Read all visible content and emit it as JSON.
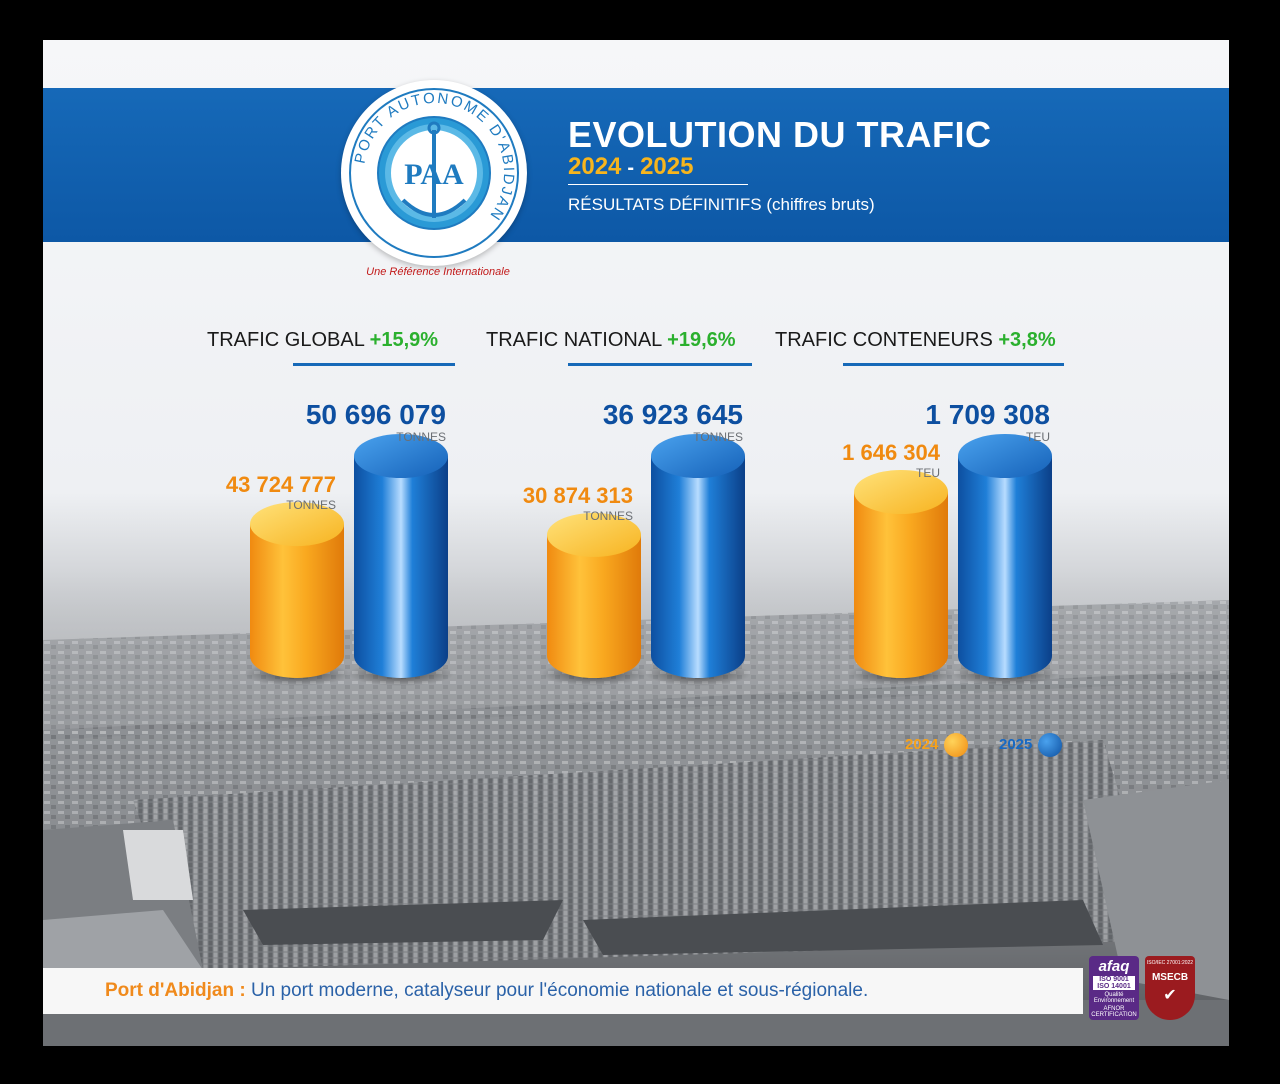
{
  "header": {
    "logo_ring_text": "PORT AUTONOME D'ABIDJAN",
    "logo_monogram": "PAA",
    "tagline": "Une Référence Internationale",
    "title": "EVOLUTION DU TRAFIC",
    "year_start": "2024",
    "year_sep": "-",
    "year_end": "2025",
    "subtitle": "RÉSULTATS DÉFINITIFS (chiffres bruts)"
  },
  "panels": [
    {
      "label": "TRAFIC GLOBAL",
      "pct": "+15,9%"
    },
    {
      "label": "TRAFIC NATIONAL",
      "pct": "+19,6%"
    },
    {
      "label": "TRAFIC CONTENEURS",
      "pct": "+3,8%"
    }
  ],
  "legend": {
    "items": [
      {
        "label": "2024",
        "color": "#f7a21b"
      },
      {
        "label": "2025",
        "color": "#1669c4"
      }
    ]
  },
  "footer": {
    "lead": "Port d'Abidjan :",
    "text": " Un port moderne, catalyseur pour l'économie nationale et sous-régionale."
  },
  "certs": {
    "afaq": {
      "brand": "afaq",
      "iso": "ISO 9001 ISO 14001",
      "note": "Qualité Environnement",
      "org": "AFNOR CERTIFICATION"
    },
    "msecb": {
      "standard": "ISO/IEC 27001:2022",
      "brand": "MSECB"
    }
  },
  "colors": {
    "orange": "#f7a21b",
    "blue": "#1669c4",
    "green": "#2bb02e",
    "banner": "#1669b8"
  },
  "chart_data": [
    {
      "type": "bar",
      "title": "TRAFIC GLOBAL",
      "categories": [
        "2024",
        "2025"
      ],
      "values": [
        43724777,
        50696079
      ],
      "value_labels": [
        "43 724 777",
        "50 696 079"
      ],
      "unit": "TONNES",
      "change": "+15,9%"
    },
    {
      "type": "bar",
      "title": "TRAFIC NATIONAL",
      "categories": [
        "2024",
        "2025"
      ],
      "values": [
        30874313,
        36923645
      ],
      "value_labels": [
        "30 874 313",
        "36 923 645"
      ],
      "unit": "TONNES",
      "change": "+19,6%"
    },
    {
      "type": "bar",
      "title": "TRAFIC CONTENEURS",
      "categories": [
        "2024",
        "2025"
      ],
      "values": [
        1646304,
        1709308
      ],
      "value_labels": [
        "1 646 304",
        "1 709 308"
      ],
      "unit": "TEU",
      "change": "+3,8%"
    }
  ]
}
